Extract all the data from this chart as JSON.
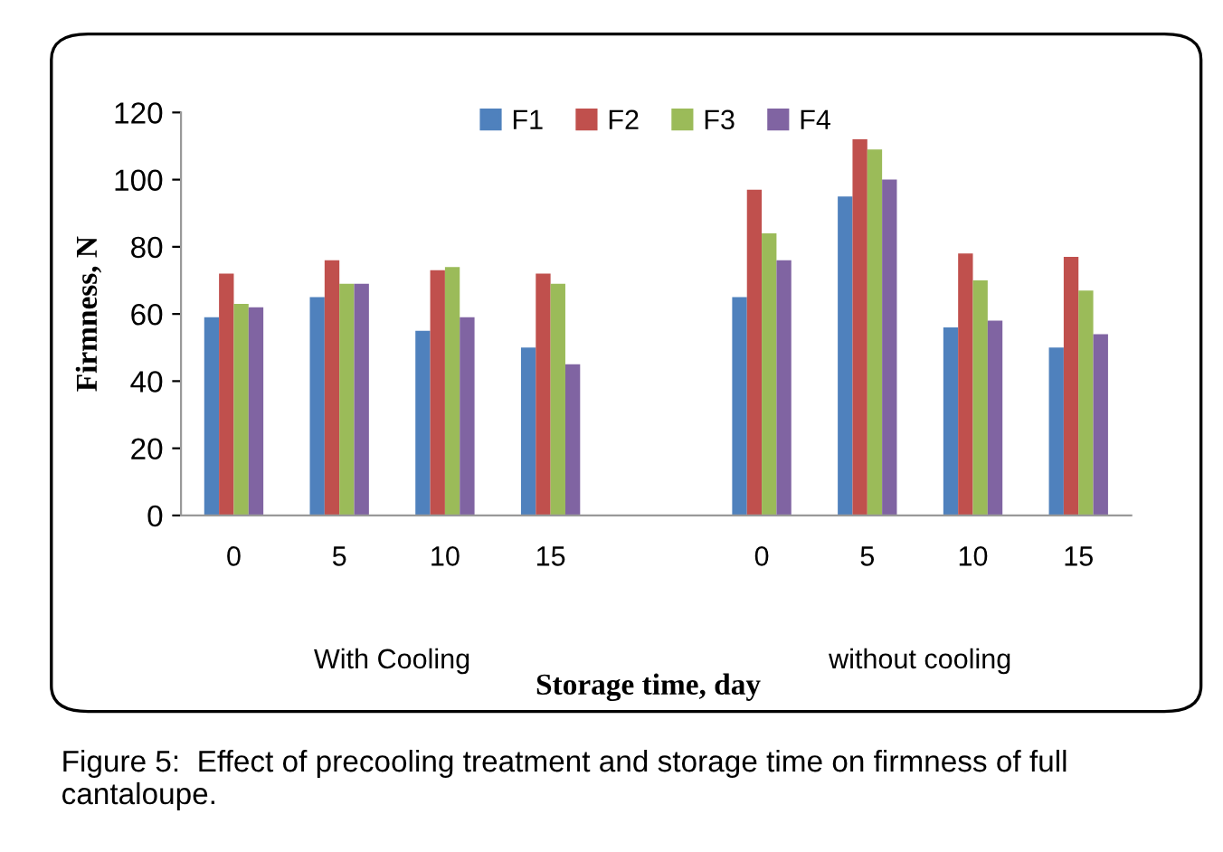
{
  "chart_data": {
    "type": "bar",
    "xlabel": "Storage time, day",
    "ylabel": "Firmness, N",
    "categories": [
      "0",
      "5",
      "10",
      "15",
      null,
      "0",
      "5",
      "10",
      "15"
    ],
    "series": [
      {
        "name": "F1",
        "color": "#4f81bd",
        "values": [
          59,
          65,
          55,
          50,
          null,
          65,
          95,
          56,
          50
        ]
      },
      {
        "name": "F2",
        "color": "#c0504d",
        "values": [
          72,
          76,
          73,
          72,
          null,
          97,
          112,
          78,
          77
        ]
      },
      {
        "name": "F3",
        "color": "#9bbb59",
        "values": [
          63,
          69,
          74,
          69,
          null,
          84,
          109,
          70,
          67
        ]
      },
      {
        "name": "F4",
        "color": "#8064a2",
        "values": [
          62,
          69,
          59,
          45,
          null,
          76,
          100,
          58,
          54
        ]
      }
    ],
    "ylim": [
      0,
      120
    ],
    "yticks": [
      0,
      20,
      40,
      60,
      80,
      100,
      120
    ],
    "legend": "top",
    "annotations": [
      "With Cooling",
      "without cooling",
      "Figure 5:  Effect of precooling treatment and storage time on firmness of full cantaloupe."
    ]
  }
}
